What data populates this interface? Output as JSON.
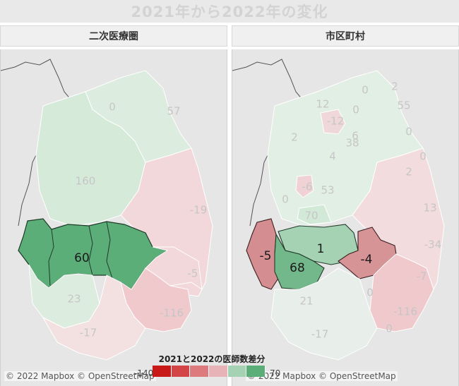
{
  "title": "2021年から2022年の変化",
  "panels": [
    {
      "header": "二次医療圏"
    },
    {
      "header": "市区町村"
    }
  ],
  "colors": {
    "strong_green": "#5cae79",
    "mid_green": "#8fc7a0",
    "light_green": "#d5ead9",
    "neutral": "#eeeeee",
    "light_red": "#f2d4d6",
    "mid_red": "#d79497",
    "strong_red": "#c91818"
  },
  "legend": {
    "title": "2021と2022の医師数差分",
    "min": "-140",
    "max": "70",
    "swatches": [
      "#c91818",
      "#d24446",
      "#dd7a7d",
      "#e8b3b6",
      "#a6d2b4",
      "#5cae79"
    ]
  },
  "left_map": {
    "labels": [
      {
        "text": "0",
        "value": 0
      },
      {
        "text": "57",
        "value": 57
      },
      {
        "text": "160",
        "value": 160
      },
      {
        "text": "-19",
        "value": -19
      },
      {
        "text": "60",
        "value": 60,
        "highlighted": true
      },
      {
        "text": "-5",
        "value": -5
      },
      {
        "text": "23",
        "value": 23
      },
      {
        "text": "-116",
        "value": -116
      },
      {
        "text": "-17",
        "value": -17
      }
    ]
  },
  "right_map": {
    "labels": [
      {
        "text": "0",
        "value": 0
      },
      {
        "text": "2",
        "value": 2
      },
      {
        "text": "12",
        "value": 12
      },
      {
        "text": "0",
        "value": 0
      },
      {
        "text": "55",
        "value": 55
      },
      {
        "text": "-12",
        "value": -12
      },
      {
        "text": "0",
        "value": 0
      },
      {
        "text": "2",
        "value": 2
      },
      {
        "text": "6",
        "value": 6
      },
      {
        "text": "38",
        "value": 38
      },
      {
        "text": "0",
        "value": 0
      },
      {
        "text": "4",
        "value": 4
      },
      {
        "text": "2",
        "value": 2
      },
      {
        "text": "-6",
        "value": -6
      },
      {
        "text": "53",
        "value": 53
      },
      {
        "text": "0",
        "value": 0
      },
      {
        "text": "13",
        "value": 13
      },
      {
        "text": "70",
        "value": 70
      },
      {
        "text": "-34",
        "value": -34
      },
      {
        "text": "-5",
        "value": -5,
        "highlighted": true
      },
      {
        "text": "1",
        "value": 1,
        "highlighted": true
      },
      {
        "text": "-4",
        "value": -4,
        "highlighted": true
      },
      {
        "text": "68",
        "value": 68,
        "highlighted": true
      },
      {
        "text": "-7",
        "value": -7
      },
      {
        "text": "21",
        "value": 21
      },
      {
        "text": "0",
        "value": 0
      },
      {
        "text": "-116",
        "value": -116
      },
      {
        "text": "-17",
        "value": -17
      },
      {
        "text": "0",
        "value": 0
      }
    ]
  },
  "attribution": "© 2022 Mapbox © OpenStreetMap"
}
